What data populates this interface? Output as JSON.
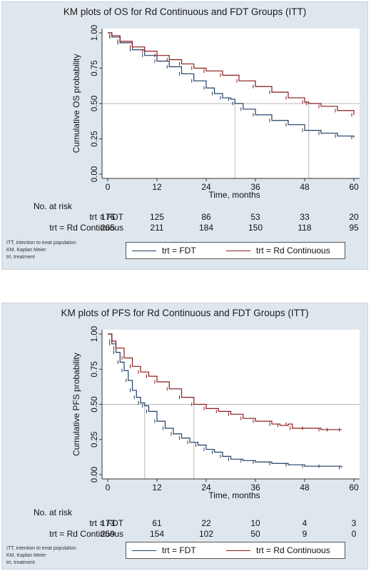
{
  "colors": {
    "fdt": "#1f3f66",
    "rd": "#8b1a1a",
    "ref": "#b8b8b8",
    "axis": "#333333"
  },
  "legend": {
    "fdt": "trt = FDT",
    "rd": "trt = Rd Continuous"
  },
  "notes": [
    "ITT, intention to treat population",
    "KM, Kaplan Meier",
    "trt, treatment"
  ],
  "risk_table": {
    "title": "No. at risk",
    "row_labels": [
      "trt = FDT",
      "trt = Rd Continuous"
    ],
    "os": [
      [
        176,
        125,
        86,
        53,
        33,
        20
      ],
      [
        265,
        211,
        184,
        150,
        118,
        95
      ]
    ],
    "pfs": [
      [
        173,
        61,
        22,
        10,
        4,
        3
      ],
      [
        259,
        154,
        102,
        50,
        9,
        0
      ]
    ]
  },
  "chart_data": [
    {
      "type": "line",
      "title": "KM plots of OS for Rd Continuous and FDT Groups (ITT)",
      "xlabel": "Time, months",
      "ylabel": "Cumulative OS probability",
      "xlim": [
        0,
        60
      ],
      "ylim": [
        0,
        1
      ],
      "xticks": [
        0,
        12,
        24,
        36,
        48,
        60
      ],
      "yticks": [
        "0.00",
        "0.25",
        "0.50",
        "0.75",
        "1.00"
      ],
      "grid": false,
      "reference_lines": {
        "y": 0.5,
        "median_x": [
          31,
          49
        ]
      },
      "series": [
        {
          "name": "trt = FDT",
          "x": [
            0,
            1,
            3,
            6,
            9,
            12,
            15,
            18,
            21,
            24,
            26,
            28,
            30,
            31,
            33,
            36,
            40,
            44,
            48,
            52,
            56,
            60
          ],
          "y": [
            1.0,
            0.97,
            0.93,
            0.88,
            0.84,
            0.8,
            0.76,
            0.71,
            0.66,
            0.61,
            0.57,
            0.54,
            0.53,
            0.5,
            0.46,
            0.42,
            0.38,
            0.35,
            0.31,
            0.29,
            0.27,
            0.26
          ]
        },
        {
          "name": "trt = Rd Continuous",
          "x": [
            0,
            1,
            3,
            6,
            9,
            12,
            15,
            18,
            21,
            24,
            28,
            32,
            36,
            40,
            44,
            48,
            49,
            52,
            56,
            60
          ],
          "y": [
            1.0,
            0.98,
            0.94,
            0.9,
            0.87,
            0.84,
            0.81,
            0.78,
            0.75,
            0.73,
            0.7,
            0.66,
            0.62,
            0.58,
            0.54,
            0.51,
            0.5,
            0.48,
            0.45,
            0.42
          ]
        }
      ]
    },
    {
      "type": "line",
      "title": "KM plots of PFS for Rd Continuous and FDT Groups (ITT)",
      "xlabel": "Time, months",
      "ylabel": "Cumulative PFS probability",
      "xlim": [
        0,
        60
      ],
      "ylim": [
        0,
        1
      ],
      "xticks": [
        0,
        12,
        24,
        36,
        48,
        60
      ],
      "yticks": [
        "0.00",
        "0.25",
        "0.50",
        "0.75",
        "1.00"
      ],
      "grid": false,
      "reference_lines": {
        "y": 0.5,
        "median_x": [
          9,
          21
        ]
      },
      "series": [
        {
          "name": "trt = FDT",
          "x": [
            0,
            1,
            2,
            3,
            4,
            5,
            6,
            7,
            8,
            9,
            10,
            12,
            14,
            16,
            18,
            20,
            22,
            24,
            26,
            28,
            30,
            33,
            36,
            40,
            44,
            48,
            52,
            57
          ],
          "y": [
            1.0,
            0.93,
            0.87,
            0.8,
            0.74,
            0.67,
            0.6,
            0.55,
            0.51,
            0.49,
            0.45,
            0.38,
            0.33,
            0.29,
            0.26,
            0.23,
            0.21,
            0.18,
            0.16,
            0.13,
            0.11,
            0.1,
            0.09,
            0.08,
            0.07,
            0.06,
            0.06,
            0.05
          ]
        },
        {
          "name": "trt = Rd Continuous",
          "x": [
            0,
            1,
            2,
            4,
            6,
            8,
            10,
            12,
            15,
            18,
            21,
            24,
            27,
            30,
            33,
            36,
            40,
            42,
            44,
            45,
            48,
            52,
            54,
            57
          ],
          "y": [
            1.0,
            0.95,
            0.9,
            0.83,
            0.77,
            0.73,
            0.7,
            0.66,
            0.61,
            0.55,
            0.5,
            0.47,
            0.45,
            0.43,
            0.4,
            0.38,
            0.36,
            0.35,
            0.36,
            0.33,
            0.33,
            0.32,
            0.32,
            0.32
          ]
        }
      ]
    }
  ]
}
